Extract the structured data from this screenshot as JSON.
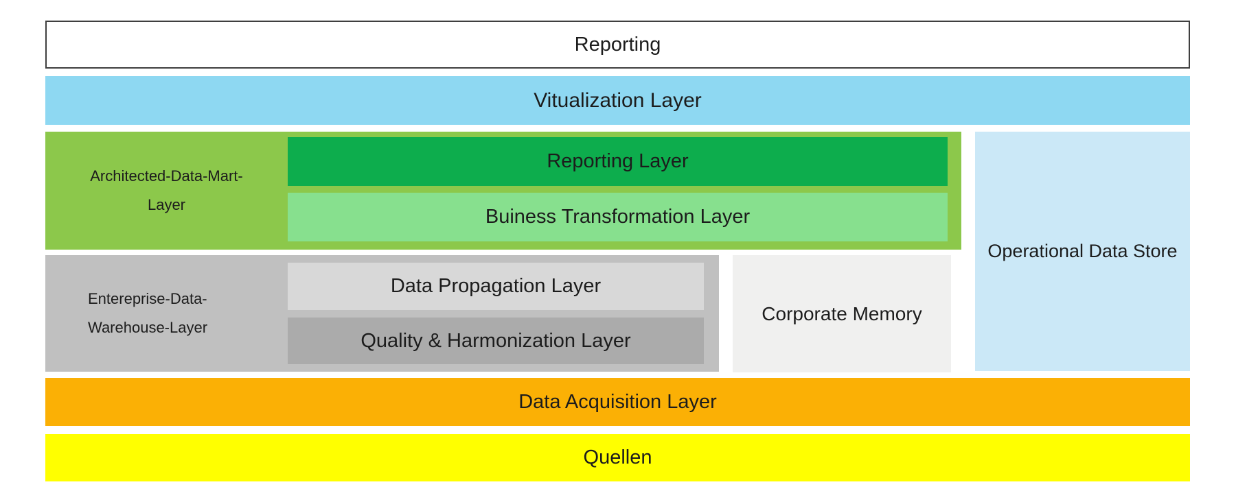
{
  "diagram": {
    "text_color": "#1c1c1c",
    "reporting_box": {
      "label": "Reporting",
      "bg": "#ffffff",
      "border": "#3f3f3f"
    },
    "virtualization_layer": {
      "label": "Vitualization Layer",
      "bg": "#8ed8f2"
    },
    "architected_data_mart_layer": {
      "label_line1": "Architected-Data-Mart-",
      "label_line2": "Layer",
      "bg": "#8cc84b",
      "reporting_layer": {
        "label": "Reporting Layer",
        "bg": "#0dad4d"
      },
      "business_transformation_layer": {
        "label": "Buiness Transformation Layer",
        "bg": "#87e08e"
      }
    },
    "enterprise_data_warehouse_layer": {
      "label_line1": "Entereprise-Data-",
      "label_line2": "Warehouse-Layer",
      "bg": "#c0c0c0",
      "data_propagation_layer": {
        "label": "Data Propagation Layer",
        "bg": "#d8d8d8"
      },
      "quality_harmonization_layer": {
        "label": "Quality & Harmonization Layer",
        "bg": "#ababab"
      }
    },
    "corporate_memory": {
      "label": "Corporate Memory",
      "bg": "#f0f0ef"
    },
    "operational_data_store": {
      "label": "Operational Data Store",
      "bg": "#cbe8f7"
    },
    "data_acquisition_layer": {
      "label": "Data Acquisition Layer",
      "bg": "#fbb005"
    },
    "quellen": {
      "label": "Quellen",
      "bg": "#ffff00"
    }
  }
}
